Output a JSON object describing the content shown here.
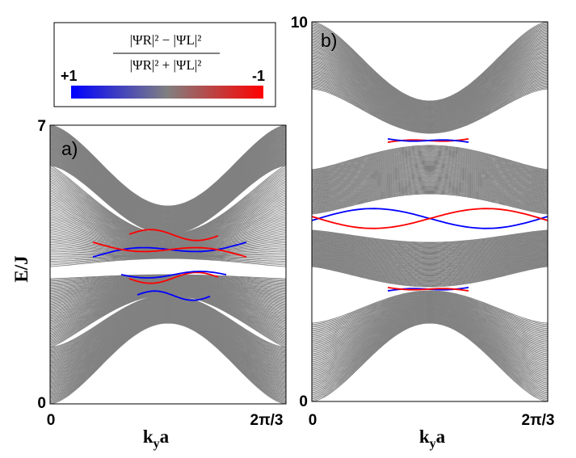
{
  "chart_data": [
    {
      "type": "line",
      "panel_label": "a)",
      "xlabel_main": "k",
      "xlabel_sub": "y",
      "xlabel_tail": "a",
      "ylabel": "E/J",
      "x_ticks": [
        "0",
        "2π/3"
      ],
      "y_ticks": [
        "0",
        "7"
      ],
      "xlim": [
        0,
        2.0944
      ],
      "ylim": [
        0,
        7
      ],
      "series": [
        {
          "name": "bulk bands",
          "color": "#808080",
          "count": 60
        },
        {
          "name": "edge state (right-localized)",
          "color": "#0000ff"
        },
        {
          "name": "edge state (left-localized)",
          "color": "#ff0000"
        }
      ]
    },
    {
      "type": "line",
      "panel_label": "b)",
      "xlabel_main": "k",
      "xlabel_sub": "y",
      "xlabel_tail": "a",
      "x_ticks": [
        "0",
        "2π/3"
      ],
      "y_ticks": [
        "0",
        "10"
      ],
      "xlim": [
        0,
        2.0944
      ],
      "ylim": [
        0,
        10
      ],
      "series": [
        {
          "name": "bulk bands",
          "color": "#808080",
          "count": 60
        },
        {
          "name": "edge state (right-localized)",
          "color": "#0000ff"
        },
        {
          "name": "edge state (left-localized)",
          "color": "#ff0000"
        }
      ]
    }
  ],
  "colorbar": {
    "formula_num": "|ΨR|² − |ΨL|²",
    "formula_den": "|ΨR|² + |ΨL|²",
    "left_label": "+1",
    "right_label": "-1",
    "color_left": "#0000ff",
    "color_mid": "#808080",
    "color_right": "#ff0000"
  }
}
